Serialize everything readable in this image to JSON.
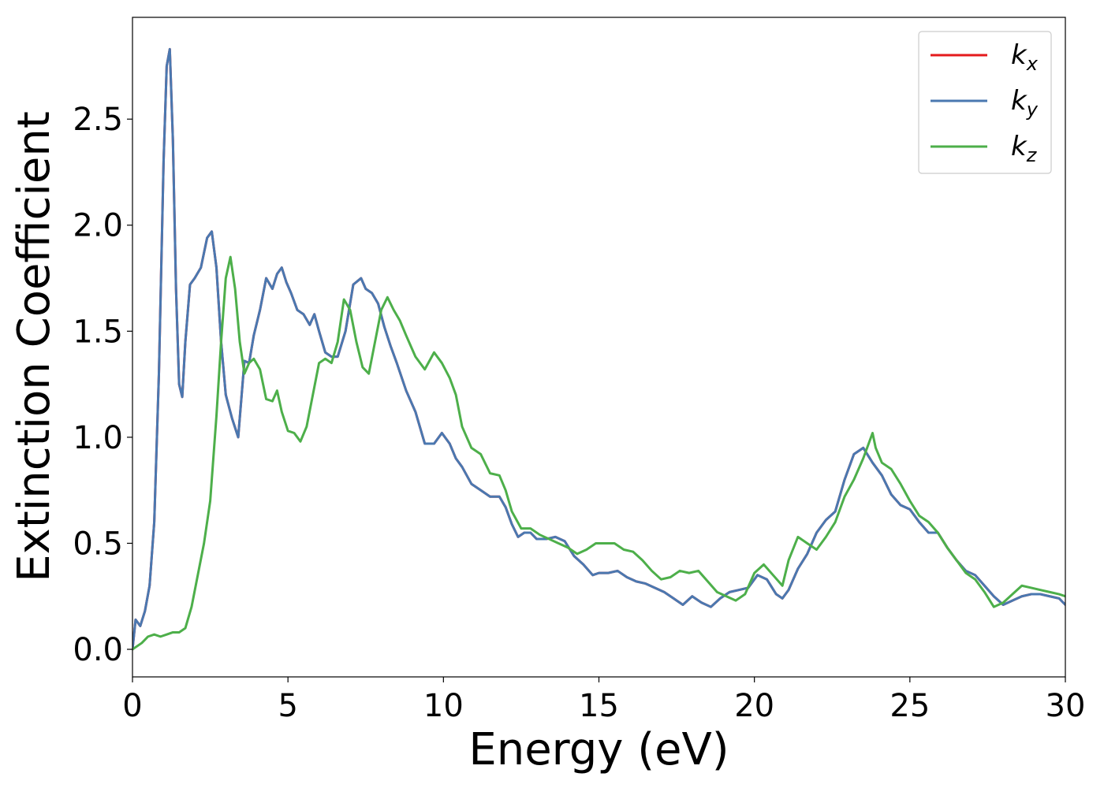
{
  "chart_data": {
    "type": "line",
    "title": "",
    "xlabel": "Energy (eV)",
    "ylabel": "Extinction Coefficient",
    "xlim": [
      0,
      30
    ],
    "ylim": [
      -0.13,
      2.98
    ],
    "xticks": [
      0,
      5,
      10,
      15,
      20,
      25,
      30
    ],
    "yticks": [
      0.0,
      0.5,
      1.0,
      1.5,
      2.0,
      2.5
    ],
    "xtick_labels": [
      "0",
      "5",
      "10",
      "15",
      "20",
      "25",
      "30"
    ],
    "ytick_labels": [
      "0.0",
      "0.5",
      "1.0",
      "1.5",
      "2.0",
      "2.5"
    ],
    "grid": false,
    "legend_position": "top-right",
    "series": [
      {
        "name": "k_x",
        "label_main": "k",
        "label_sub": "x",
        "color": "#e41a1c",
        "x": [
          0,
          0.1,
          0.25,
          0.4,
          0.55,
          0.7,
          0.85,
          1.0,
          1.1,
          1.2,
          1.3,
          1.4,
          1.5,
          1.6,
          1.7,
          1.85,
          2.0,
          2.2,
          2.4,
          2.55,
          2.7,
          2.85,
          3.0,
          3.2,
          3.4,
          3.5,
          3.6,
          3.75,
          3.9,
          4.1,
          4.3,
          4.5,
          4.65,
          4.8,
          4.95,
          5.1,
          5.3,
          5.5,
          5.7,
          5.85,
          6.0,
          6.2,
          6.4,
          6.6,
          6.85,
          7.1,
          7.35,
          7.5,
          7.7,
          7.9,
          8.1,
          8.3,
          8.5,
          8.8,
          9.1,
          9.4,
          9.7,
          9.95,
          10.2,
          10.4,
          10.6,
          10.9,
          11.2,
          11.5,
          11.8,
          12.0,
          12.2,
          12.4,
          12.6,
          12.8,
          13.0,
          13.3,
          13.6,
          13.9,
          14.2,
          14.5,
          14.8,
          15.0,
          15.3,
          15.6,
          15.9,
          16.2,
          16.5,
          16.8,
          17.1,
          17.4,
          17.7,
          18.0,
          18.3,
          18.6,
          18.9,
          19.2,
          19.5,
          19.8,
          20.1,
          20.4,
          20.7,
          20.9,
          21.1,
          21.4,
          21.7,
          22.0,
          22.3,
          22.6,
          22.9,
          23.2,
          23.5,
          23.8,
          24.1,
          24.4,
          24.7,
          25.0,
          25.3,
          25.6,
          25.9,
          26.2,
          26.5,
          26.8,
          27.1,
          27.4,
          27.7,
          28.0,
          28.3,
          28.6,
          28.9,
          29.2,
          29.5,
          29.8,
          30.0
        ],
        "y": [
          0.0,
          0.14,
          0.11,
          0.18,
          0.3,
          0.6,
          1.3,
          2.3,
          2.75,
          2.83,
          2.4,
          1.7,
          1.25,
          1.19,
          1.45,
          1.72,
          1.75,
          1.8,
          1.94,
          1.97,
          1.8,
          1.45,
          1.2,
          1.09,
          1.0,
          1.18,
          1.36,
          1.35,
          1.48,
          1.6,
          1.75,
          1.7,
          1.77,
          1.8,
          1.73,
          1.68,
          1.6,
          1.58,
          1.53,
          1.58,
          1.5,
          1.4,
          1.38,
          1.38,
          1.5,
          1.72,
          1.75,
          1.7,
          1.68,
          1.63,
          1.52,
          1.43,
          1.35,
          1.22,
          1.12,
          0.97,
          0.97,
          1.02,
          0.97,
          0.9,
          0.86,
          0.78,
          0.75,
          0.72,
          0.72,
          0.67,
          0.59,
          0.53,
          0.55,
          0.55,
          0.52,
          0.52,
          0.53,
          0.51,
          0.44,
          0.4,
          0.35,
          0.36,
          0.36,
          0.37,
          0.34,
          0.32,
          0.31,
          0.29,
          0.27,
          0.24,
          0.21,
          0.25,
          0.22,
          0.2,
          0.24,
          0.27,
          0.28,
          0.29,
          0.35,
          0.33,
          0.26,
          0.24,
          0.28,
          0.38,
          0.45,
          0.55,
          0.61,
          0.65,
          0.8,
          0.92,
          0.95,
          0.88,
          0.82,
          0.73,
          0.68,
          0.66,
          0.6,
          0.55,
          0.55,
          0.48,
          0.42,
          0.37,
          0.35,
          0.3,
          0.25,
          0.21,
          0.23,
          0.25,
          0.26,
          0.26,
          0.25,
          0.24,
          0.21
        ]
      },
      {
        "name": "k_y",
        "label_main": "k",
        "label_sub": "y",
        "color": "#4a78b0",
        "x": [
          0,
          0.1,
          0.25,
          0.4,
          0.55,
          0.7,
          0.85,
          1.0,
          1.1,
          1.2,
          1.3,
          1.4,
          1.5,
          1.6,
          1.7,
          1.85,
          2.0,
          2.2,
          2.4,
          2.55,
          2.7,
          2.85,
          3.0,
          3.2,
          3.4,
          3.5,
          3.6,
          3.75,
          3.9,
          4.1,
          4.3,
          4.5,
          4.65,
          4.8,
          4.95,
          5.1,
          5.3,
          5.5,
          5.7,
          5.85,
          6.0,
          6.2,
          6.4,
          6.6,
          6.85,
          7.1,
          7.35,
          7.5,
          7.7,
          7.9,
          8.1,
          8.3,
          8.5,
          8.8,
          9.1,
          9.4,
          9.7,
          9.95,
          10.2,
          10.4,
          10.6,
          10.9,
          11.2,
          11.5,
          11.8,
          12.0,
          12.2,
          12.4,
          12.6,
          12.8,
          13.0,
          13.3,
          13.6,
          13.9,
          14.2,
          14.5,
          14.8,
          15.0,
          15.3,
          15.6,
          15.9,
          16.2,
          16.5,
          16.8,
          17.1,
          17.4,
          17.7,
          18.0,
          18.3,
          18.6,
          18.9,
          19.2,
          19.5,
          19.8,
          20.1,
          20.4,
          20.7,
          20.9,
          21.1,
          21.4,
          21.7,
          22.0,
          22.3,
          22.6,
          22.9,
          23.2,
          23.5,
          23.8,
          24.1,
          24.4,
          24.7,
          25.0,
          25.3,
          25.6,
          25.9,
          26.2,
          26.5,
          26.8,
          27.1,
          27.4,
          27.7,
          28.0,
          28.3,
          28.6,
          28.9,
          29.2,
          29.5,
          29.8,
          30.0
        ],
        "y": [
          0.0,
          0.14,
          0.11,
          0.18,
          0.3,
          0.6,
          1.3,
          2.3,
          2.75,
          2.83,
          2.4,
          1.7,
          1.25,
          1.19,
          1.45,
          1.72,
          1.75,
          1.8,
          1.94,
          1.97,
          1.8,
          1.45,
          1.2,
          1.09,
          1.0,
          1.18,
          1.36,
          1.35,
          1.48,
          1.6,
          1.75,
          1.7,
          1.77,
          1.8,
          1.73,
          1.68,
          1.6,
          1.58,
          1.53,
          1.58,
          1.5,
          1.4,
          1.38,
          1.38,
          1.5,
          1.72,
          1.75,
          1.7,
          1.68,
          1.63,
          1.52,
          1.43,
          1.35,
          1.22,
          1.12,
          0.97,
          0.97,
          1.02,
          0.97,
          0.9,
          0.86,
          0.78,
          0.75,
          0.72,
          0.72,
          0.67,
          0.59,
          0.53,
          0.55,
          0.55,
          0.52,
          0.52,
          0.53,
          0.51,
          0.44,
          0.4,
          0.35,
          0.36,
          0.36,
          0.37,
          0.34,
          0.32,
          0.31,
          0.29,
          0.27,
          0.24,
          0.21,
          0.25,
          0.22,
          0.2,
          0.24,
          0.27,
          0.28,
          0.29,
          0.35,
          0.33,
          0.26,
          0.24,
          0.28,
          0.38,
          0.45,
          0.55,
          0.61,
          0.65,
          0.8,
          0.92,
          0.95,
          0.88,
          0.82,
          0.73,
          0.68,
          0.66,
          0.6,
          0.55,
          0.55,
          0.48,
          0.42,
          0.37,
          0.35,
          0.3,
          0.25,
          0.21,
          0.23,
          0.25,
          0.26,
          0.26,
          0.25,
          0.24,
          0.21
        ]
      },
      {
        "name": "k_z",
        "label_main": "k",
        "label_sub": "z",
        "color": "#4daf4a",
        "x": [
          0,
          0.3,
          0.5,
          0.7,
          0.9,
          1.1,
          1.3,
          1.5,
          1.7,
          1.9,
          2.1,
          2.3,
          2.5,
          2.7,
          2.85,
          3.0,
          3.15,
          3.3,
          3.45,
          3.6,
          3.75,
          3.9,
          4.1,
          4.3,
          4.5,
          4.65,
          4.8,
          5.0,
          5.2,
          5.4,
          5.6,
          5.8,
          6.0,
          6.2,
          6.4,
          6.6,
          6.8,
          7.0,
          7.2,
          7.4,
          7.6,
          7.8,
          8.0,
          8.2,
          8.4,
          8.6,
          8.8,
          9.1,
          9.4,
          9.7,
          9.95,
          10.2,
          10.4,
          10.6,
          10.9,
          11.2,
          11.5,
          11.8,
          12.0,
          12.2,
          12.5,
          12.8,
          13.1,
          13.4,
          13.7,
          14.0,
          14.3,
          14.6,
          14.9,
          15.2,
          15.5,
          15.8,
          16.1,
          16.4,
          16.7,
          17.0,
          17.3,
          17.6,
          17.9,
          18.2,
          18.5,
          18.8,
          19.1,
          19.4,
          19.7,
          20.0,
          20.3,
          20.6,
          20.9,
          21.1,
          21.4,
          21.7,
          22.0,
          22.3,
          22.6,
          22.9,
          23.2,
          23.5,
          23.7,
          23.8,
          23.9,
          24.1,
          24.4,
          24.7,
          25.0,
          25.3,
          25.6,
          25.9,
          26.2,
          26.5,
          26.8,
          27.1,
          27.4,
          27.7,
          28.0,
          28.3,
          28.6,
          28.9,
          29.2,
          29.5,
          29.8,
          30.0
        ],
        "y": [
          0.0,
          0.03,
          0.06,
          0.07,
          0.06,
          0.07,
          0.08,
          0.08,
          0.1,
          0.2,
          0.35,
          0.5,
          0.7,
          1.1,
          1.45,
          1.75,
          1.85,
          1.7,
          1.45,
          1.3,
          1.35,
          1.37,
          1.32,
          1.18,
          1.17,
          1.22,
          1.12,
          1.03,
          1.02,
          0.98,
          1.05,
          1.2,
          1.35,
          1.37,
          1.35,
          1.45,
          1.65,
          1.6,
          1.45,
          1.33,
          1.3,
          1.45,
          1.6,
          1.66,
          1.6,
          1.55,
          1.48,
          1.38,
          1.32,
          1.4,
          1.35,
          1.28,
          1.2,
          1.05,
          0.95,
          0.92,
          0.83,
          0.82,
          0.75,
          0.65,
          0.57,
          0.57,
          0.54,
          0.52,
          0.5,
          0.48,
          0.45,
          0.47,
          0.5,
          0.5,
          0.5,
          0.47,
          0.46,
          0.42,
          0.37,
          0.33,
          0.34,
          0.37,
          0.36,
          0.37,
          0.32,
          0.27,
          0.25,
          0.23,
          0.26,
          0.36,
          0.4,
          0.35,
          0.3,
          0.42,
          0.53,
          0.5,
          0.47,
          0.53,
          0.6,
          0.72,
          0.8,
          0.9,
          0.98,
          1.02,
          0.95,
          0.88,
          0.85,
          0.78,
          0.7,
          0.63,
          0.6,
          0.55,
          0.48,
          0.42,
          0.36,
          0.33,
          0.27,
          0.2,
          0.22,
          0.26,
          0.3,
          0.29,
          0.28,
          0.27,
          0.26,
          0.25
        ]
      }
    ]
  }
}
